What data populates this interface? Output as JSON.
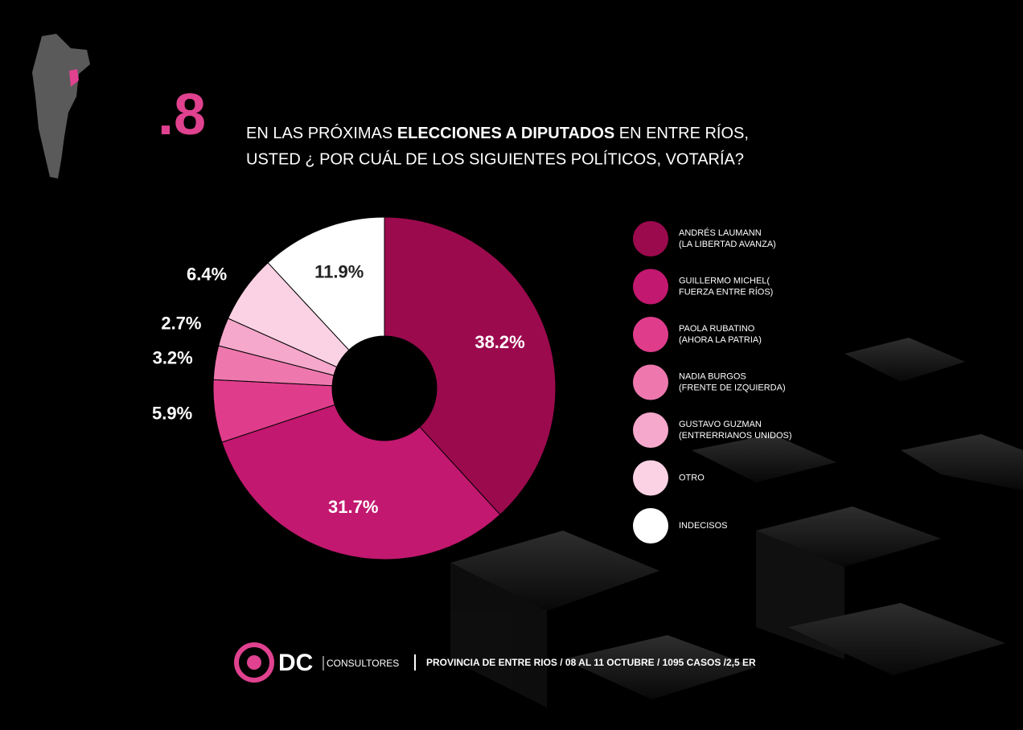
{
  "chart_data": {
    "type": "pie",
    "number": ".8",
    "title_lines": [
      [
        "EN LAS PRÓXIMAS ",
        "ELECCIONES A DIPUTADOS",
        " EN ENTRE RÍOS,"
      ],
      [
        "USTED ¿ POR CUÁL DE LOS SIGUIENTES POLÍTICOS, VOTARÍA?"
      ]
    ],
    "categories": [
      [
        "ANDRÉS LAUMANN",
        "(LA LIBERTAD AVANZA)"
      ],
      [
        "GUILLERMO MICHEL(",
        "FUERZA ENTRE RÍOS)"
      ],
      [
        "PAOLA RUBATINO",
        "(AHORA LA PATRIA)"
      ],
      [
        "NADIA BURGOS",
        "(FRENTE DE IZQUIERDA)"
      ],
      [
        "GUSTAVO GUZMAN",
        "(ENTRERRIANOS UNIDOS)"
      ],
      [
        "OTRO"
      ],
      [
        "INDECISOS"
      ]
    ],
    "values": [
      38.2,
      31.7,
      5.9,
      3.2,
      2.7,
      6.4,
      11.9
    ],
    "value_labels": [
      "38.2%",
      "31.7%",
      "5.9%",
      "3.2%",
      "2.7%",
      "6.4%",
      "11.9%"
    ],
    "colors": [
      "#9c0a4e",
      "#c2186f",
      "#df3d8c",
      "#ee78ae",
      "#f5a8cb",
      "#fbd2e3",
      "#ffffff"
    ],
    "footer": {
      "brand": "DC",
      "brand_sub": "CONSULTORES",
      "note": "PROVINCIA DE ENTRE RIOS / 08 AL 11 OCTUBRE / 1095 CASOS /2,5 ER"
    }
  }
}
